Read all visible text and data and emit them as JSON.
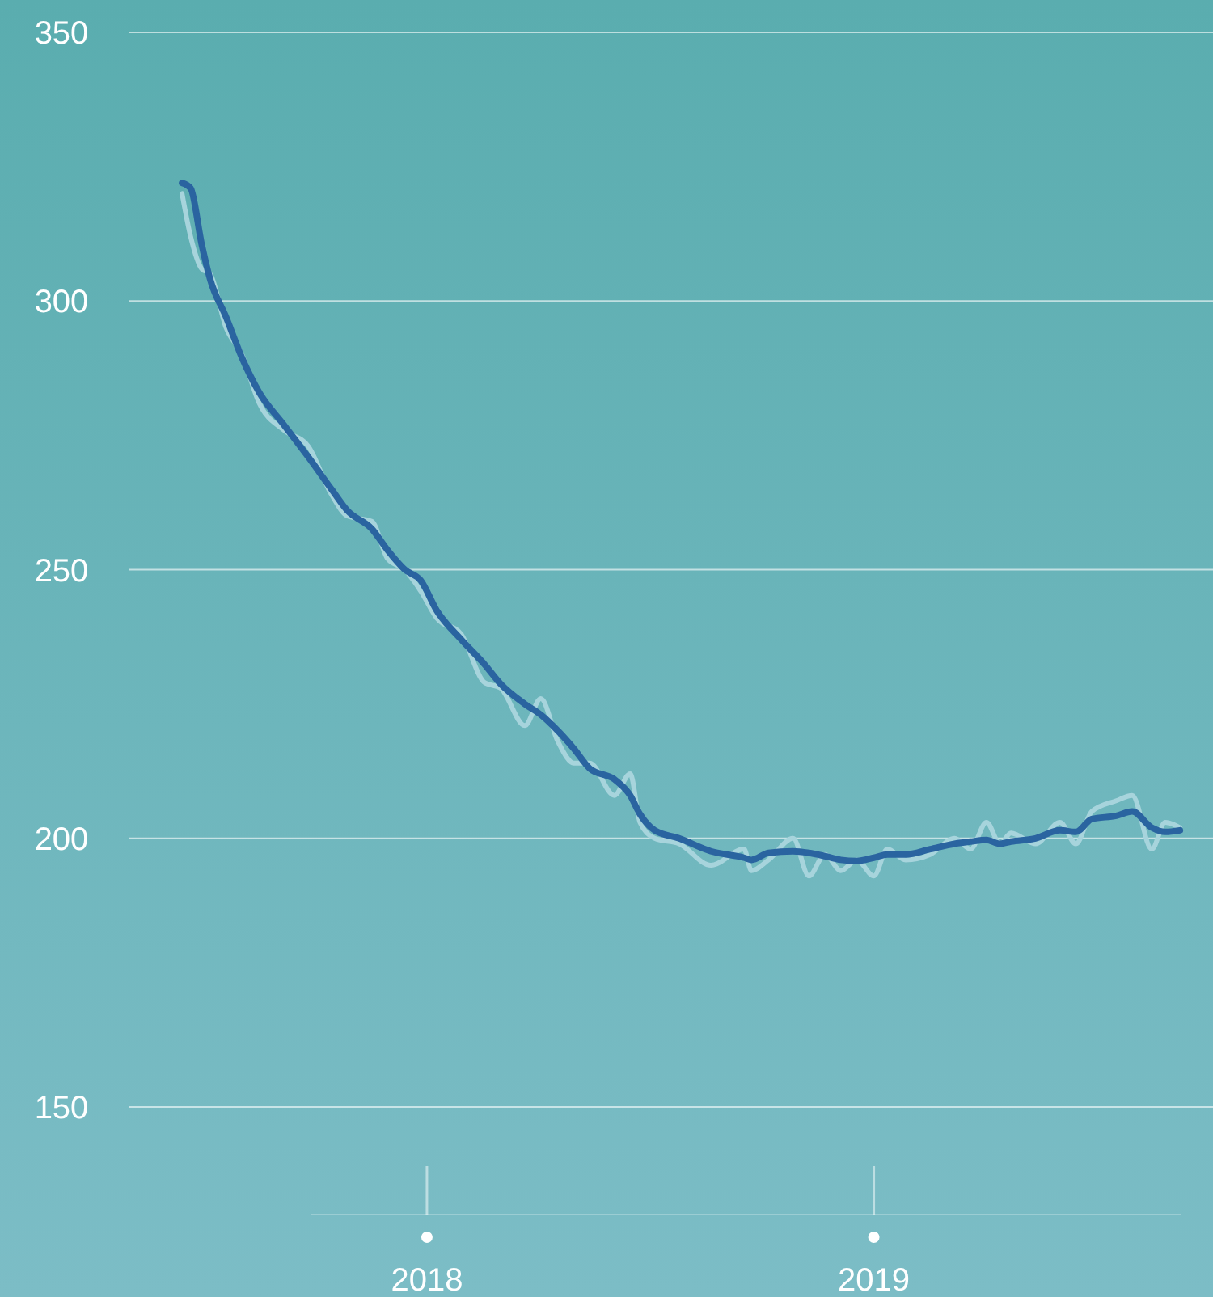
{
  "chart_data": {
    "type": "line",
    "xlim": [
      "2017-05-03",
      "2019-10-05"
    ],
    "xticks": [
      {
        "value": "2018-01-01",
        "label": "2018"
      },
      {
        "value": "2019-01-01",
        "label": "2019"
      }
    ],
    "ylim": [
      130,
      350
    ],
    "yticks": [
      150,
      200,
      250,
      300,
      350
    ],
    "grid": "y",
    "line_style": "solid",
    "marker": "none",
    "series": [
      {
        "color": "#a7d4dc",
        "x": [
          "2017-06-15",
          "2017-06-22",
          "2017-07-01",
          "2017-07-08",
          "2017-07-21",
          "2017-08-03",
          "2017-08-17",
          "2017-09-06",
          "2017-09-26",
          "2017-10-15",
          "2017-10-28",
          "2017-11-17",
          "2017-11-30",
          "2017-12-14",
          "2017-12-27",
          "2018-01-09",
          "2018-01-29",
          "2018-02-17",
          "2018-03-02",
          "2018-03-22",
          "2018-04-04",
          "2018-04-18",
          "2018-05-01",
          "2018-05-14",
          "2018-06-03",
          "2018-06-16",
          "2018-06-24",
          "2018-07-06",
          "2018-07-26",
          "2018-08-21",
          "2018-09-17",
          "2018-09-23",
          "2018-10-07",
          "2018-10-27",
          "2018-11-09",
          "2018-11-22",
          "2018-12-05",
          "2018-12-18",
          "2019-01-01",
          "2019-01-12",
          "2019-01-27",
          "2019-02-16",
          "2019-03-08",
          "2019-03-21",
          "2019-04-03",
          "2019-04-14",
          "2019-04-23",
          "2019-05-13",
          "2019-06-02",
          "2019-06-15",
          "2019-06-28",
          "2019-07-18",
          "2019-07-31",
          "2019-08-16",
          "2019-08-27",
          "2019-09-08"
        ],
        "values": [
          320,
          312,
          306,
          305,
          295,
          290,
          281,
          276,
          273,
          264,
          260,
          259,
          252,
          250,
          246,
          241,
          238,
          229,
          228,
          221,
          226,
          218,
          214,
          214,
          208,
          212,
          203,
          200,
          199,
          195,
          198,
          194,
          196,
          200,
          193,
          197,
          194,
          196,
          193,
          198,
          196,
          197,
          200,
          198,
          203,
          199,
          201,
          199,
          203,
          199,
          205,
          207,
          208,
          198,
          203,
          202
        ]
      },
      {
        "color": "#2a64a0",
        "x": [
          "2017-06-15",
          "2017-06-22",
          "2017-07-01",
          "2017-07-08",
          "2017-07-21",
          "2017-08-03",
          "2017-08-17",
          "2017-09-06",
          "2017-09-26",
          "2017-10-15",
          "2017-10-28",
          "2017-11-17",
          "2017-11-30",
          "2017-12-14",
          "2017-12-27",
          "2018-01-09",
          "2018-01-29",
          "2018-02-17",
          "2018-03-02",
          "2018-03-22",
          "2018-04-04",
          "2018-04-18",
          "2018-05-01",
          "2018-05-14",
          "2018-06-03",
          "2018-06-16",
          "2018-06-24",
          "2018-07-06",
          "2018-07-26",
          "2018-08-21",
          "2018-09-17",
          "2018-09-23",
          "2018-10-07",
          "2018-10-27",
          "2018-11-09",
          "2018-11-22",
          "2018-12-05",
          "2018-12-18",
          "2019-01-01",
          "2019-01-12",
          "2019-01-27",
          "2019-02-16",
          "2019-03-08",
          "2019-03-21",
          "2019-04-03",
          "2019-04-14",
          "2019-04-23",
          "2019-05-13",
          "2019-06-02",
          "2019-06-15",
          "2019-06-28",
          "2019-07-18",
          "2019-07-31",
          "2019-08-16",
          "2019-08-27",
          "2019-09-08"
        ],
        "values": [
          322,
          321,
          310.6,
          304,
          297,
          289.4,
          283,
          277,
          271,
          265,
          261,
          257.6,
          253.6,
          250,
          248,
          242.4,
          237,
          232.4,
          228.8,
          225,
          223,
          220,
          216.7,
          213,
          211,
          208,
          204.5,
          201.5,
          200,
          197.6,
          196.4,
          196,
          197.3,
          197.6,
          197.3,
          196.7,
          196,
          195.8,
          196.4,
          197,
          197,
          198,
          199,
          199.4,
          199.7,
          199,
          199.4,
          200,
          201.5,
          201.2,
          203.6,
          204.2,
          205,
          202,
          201.2,
          201.5
        ]
      }
    ]
  }
}
